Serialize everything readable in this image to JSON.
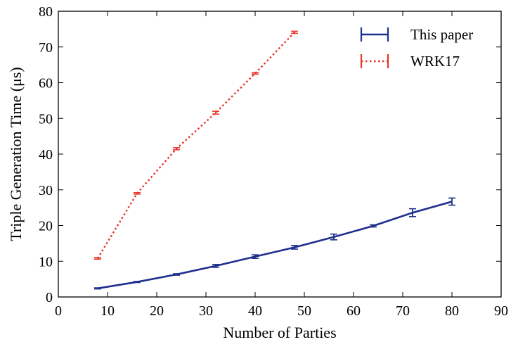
{
  "chart_data": {
    "type": "line",
    "title": "",
    "xlabel": "Number of Parties",
    "ylabel": "Triple Generation Time (μs)",
    "xlim": [
      0,
      90
    ],
    "ylim": [
      0,
      80
    ],
    "xticks": [
      0,
      10,
      20,
      30,
      40,
      50,
      60,
      70,
      80,
      90
    ],
    "yticks": [
      0,
      10,
      20,
      30,
      40,
      50,
      60,
      70,
      80
    ],
    "grid": false,
    "legend_position": "top-right",
    "series": [
      {
        "name": "This paper",
        "color": "#1f2f8c",
        "style": "solid",
        "x": [
          8,
          16,
          24,
          32,
          40,
          48,
          56,
          64,
          72,
          80
        ],
        "y": [
          2.4,
          4.2,
          6.3,
          8.7,
          11.3,
          13.9,
          16.8,
          19.9,
          23.6,
          26.7
        ],
        "err": [
          0.15,
          0.15,
          0.2,
          0.4,
          0.5,
          0.5,
          0.8,
          0.3,
          1.1,
          1.0
        ]
      },
      {
        "name": "WRK17",
        "color": "#e8362b",
        "style": "dotted",
        "x": [
          8,
          16,
          24,
          32,
          40,
          48
        ],
        "y": [
          10.8,
          29.0,
          41.5,
          51.6,
          62.6,
          74.1
        ],
        "err": [
          0.2,
          0.2,
          0.3,
          0.4,
          0.2,
          0.3
        ]
      }
    ]
  }
}
